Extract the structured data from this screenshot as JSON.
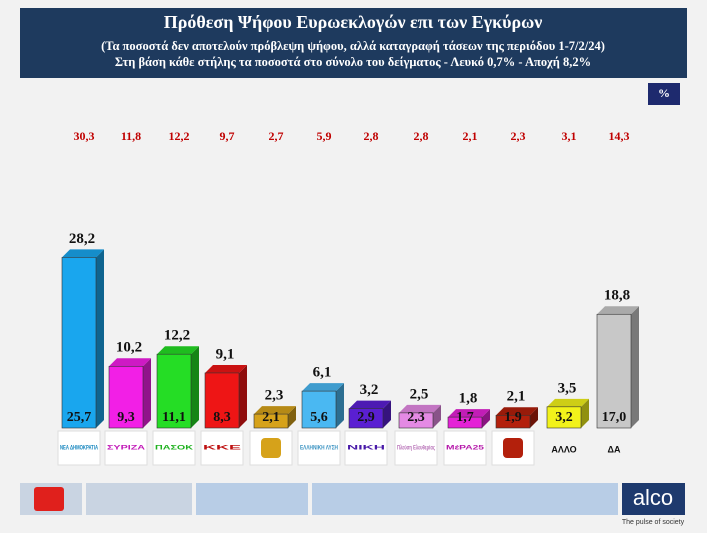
{
  "chart_data": {
    "type": "bar3d",
    "title": "Πρόθεση Ψήφου Ευρωεκλογών επι των Εγκύρων",
    "subtitle": "(Τα ποσοστά δεν αποτελούν πρόβλεψη ψήφου, αλλά καταγραφή τάσεων της περιόδου  1-7/2/24)",
    "subtitle2": "Στη βάση κάθε στήλης τα ποσοστά στο σύνολο του δείγματος - Λευκό 0,7% - Αποχή 8,2%",
    "unit": "%",
    "categories": [
      "ΝΕΑ ΔΗΜΟΚΡΑΤΙΑ",
      "ΣΥΡΙΖΑ",
      "ΠΑΣΟΚ",
      "ΚΚΕ",
      null,
      "ΕΛΛΗΝΙΚΗ ΛΥΣΗ",
      "ΝΙΚΗ",
      "Πλεύση Ελευθερίας",
      "ΜέΡΑ25",
      null,
      "ΑΛΛΟ",
      "ΔΑ"
    ],
    "series": [
      {
        "values": [
          28.2,
          10.2,
          12.2,
          9.1,
          2.3,
          6.1,
          3.2,
          2.5,
          1.8,
          2.1,
          3.5,
          18.8
        ],
        "value_labels": [
          "28,2",
          "10,2",
          "12,2",
          "9,1",
          "2,3",
          "6,1",
          "3,2",
          "2,5",
          "1,8",
          "2,1",
          "3,5",
          "18,8"
        ],
        "colors": [
          "#19a6ee",
          "#f21fe6",
          "#25dd25",
          "#ee1515",
          "#d6a21a",
          "#4ab8f2",
          "#5a1fd2",
          "#e48ae4",
          "#e422d6",
          "#b3200c",
          "#f2f21a",
          "#c8c8c8"
        ]
      },
      {
        "values": [
          25.7,
          9.3,
          11.1,
          8.3,
          2.1,
          5.6,
          2.9,
          2.3,
          1.7,
          1.9,
          3.2,
          17.0
        ],
        "value_labels": [
          "25,7",
          "9,3",
          "11,1",
          "8,3",
          "2,1",
          "5,6",
          "2,9",
          "2,3",
          "1,7",
          "1,9",
          "3,2",
          "17,0"
        ]
      },
      {
        "values": [
          30.3,
          11.8,
          12.2,
          9.7,
          2.7,
          5.9,
          2.8,
          2.8,
          2.1,
          2.3,
          3.1,
          14.3
        ],
        "value_labels": [
          "30,3",
          "11,8",
          "12,2",
          "9,7",
          "2,7",
          "5,9",
          "2,8",
          "2,8",
          "2,1",
          "2,3",
          "3,1",
          "14,3"
        ],
        "color": "#c00000"
      }
    ],
    "brand": "alco",
    "tagline": "The pulse of society"
  }
}
